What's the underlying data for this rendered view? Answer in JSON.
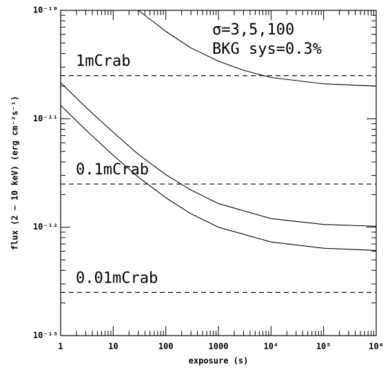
{
  "chart_data": {
    "type": "line",
    "xlabel": "exposure (s)",
    "ylabel": "flux (2 − 10 keV) (erg cm⁻²s⁻¹)",
    "xscale": "log",
    "yscale": "log",
    "xlim": [
      1,
      1000000
    ],
    "ylim": [
      1e-13,
      1e-10
    ],
    "xticks": [
      1,
      10,
      100,
      1000,
      {
        "value": 10000,
        "label": "10⁴"
      },
      {
        "value": 100000,
        "label": "10⁵"
      },
      {
        "value": 1000000,
        "label": "10⁶"
      }
    ],
    "yticks": [
      {
        "value": 1e-13,
        "label": "10⁻¹³"
      },
      {
        "value": 1e-12,
        "label": "10⁻¹²"
      },
      {
        "value": 1e-11,
        "label": "10⁻¹¹"
      },
      {
        "value": 1e-10,
        "label": "10⁻¹⁰"
      }
    ],
    "annotations": [
      "σ=3,5,100",
      "BKG sys=0.3%"
    ],
    "reference_lines": [
      {
        "value": 2.5e-11,
        "label": "1mCrab"
      },
      {
        "value": 2.5e-12,
        "label": "0.1mCrab"
      },
      {
        "value": 2.5e-13,
        "label": "0.01mCrab"
      }
    ],
    "series": [
      {
        "color": "#000000",
        "x": [
          30,
          100,
          300,
          1000,
          3000,
          10000,
          100000,
          1000000
        ],
        "values": [
          1e-10,
          6.4e-11,
          4.5e-11,
          3.4e-11,
          2.8e-11,
          2.4e-11,
          2.1e-11,
          2e-11
        ]
      },
      {
        "color": "#000000",
        "x": [
          1,
          3,
          10,
          30,
          100,
          300,
          1000,
          10000,
          100000,
          1000000
        ],
        "values": [
          2.15e-11,
          1.28e-11,
          7.5e-12,
          4.7e-12,
          3.05e-12,
          2.2e-12,
          1.65e-12,
          1.2e-12,
          1.06e-12,
          1.02e-12
        ]
      },
      {
        "color": "#000000",
        "x": [
          1,
          3,
          10,
          30,
          100,
          300,
          1000,
          10000,
          100000,
          1000000
        ],
        "values": [
          1.33e-11,
          7.9e-12,
          4.6e-12,
          2.9e-12,
          1.87e-12,
          1.33e-12,
          1e-12,
          7.3e-13,
          6.4e-13,
          6.1e-13
        ]
      }
    ]
  }
}
